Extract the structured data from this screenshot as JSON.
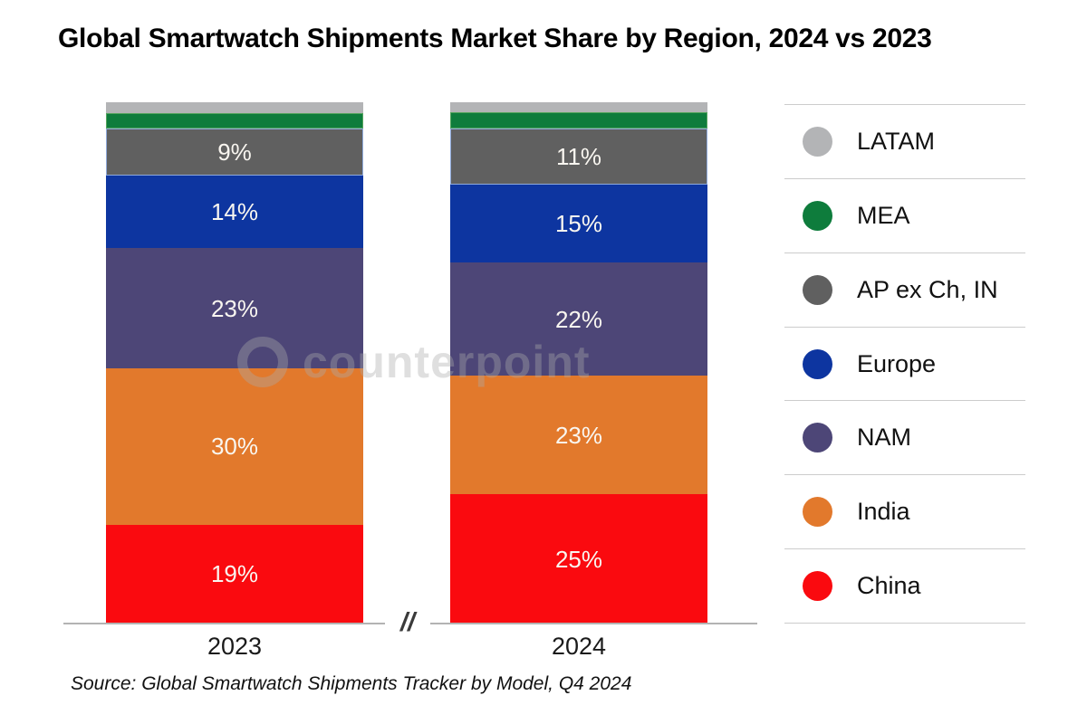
{
  "title": "Global Smartwatch Shipments Market Share by Region, 2024 vs 2023",
  "source_note": "Source: Global Smartwatch Shipments Tracker by Model, Q4 2024",
  "watermark": "Counterpoint",
  "axis_break_mark": "//",
  "legend_order_top_to_bottom": [
    "LATAM",
    "MEA",
    "AP ex Ch, IN",
    "Europe",
    "NAM",
    "India",
    "China"
  ],
  "chart_data": {
    "type": "bar",
    "stacked": true,
    "unit": "percent share of shipments",
    "categories": [
      "2023",
      "2024"
    ],
    "grid": false,
    "legend_position": "right",
    "series": [
      {
        "name": "China",
        "color": "#fa0a0f",
        "border": null,
        "values": [
          19,
          25
        ],
        "labels": [
          "19%",
          "25%"
        ]
      },
      {
        "name": "India",
        "color": "#e2792c",
        "border": null,
        "values": [
          30,
          23
        ],
        "labels": [
          "30%",
          "23%"
        ]
      },
      {
        "name": "NAM",
        "color": "#4d4677",
        "border": null,
        "values": [
          23,
          22
        ],
        "labels": [
          "23%",
          "22%"
        ]
      },
      {
        "name": "Europe",
        "color": "#0d35a0",
        "border": null,
        "values": [
          14,
          15
        ],
        "labels": [
          "14%",
          "15%"
        ]
      },
      {
        "name": "AP ex Ch, IN",
        "color": "#606060",
        "border": "#8faadc",
        "values": [
          9,
          11
        ],
        "labels": [
          "9%",
          "11%"
        ]
      },
      {
        "name": "MEA",
        "color": "#0e7c3c",
        "border": "#55a55e",
        "values": [
          3,
          3
        ],
        "labels": [
          "",
          ""
        ]
      },
      {
        "name": "LATAM",
        "color": "#b3b4b6",
        "border": null,
        "values": [
          2,
          2
        ],
        "labels": [
          "",
          ""
        ]
      }
    ]
  }
}
